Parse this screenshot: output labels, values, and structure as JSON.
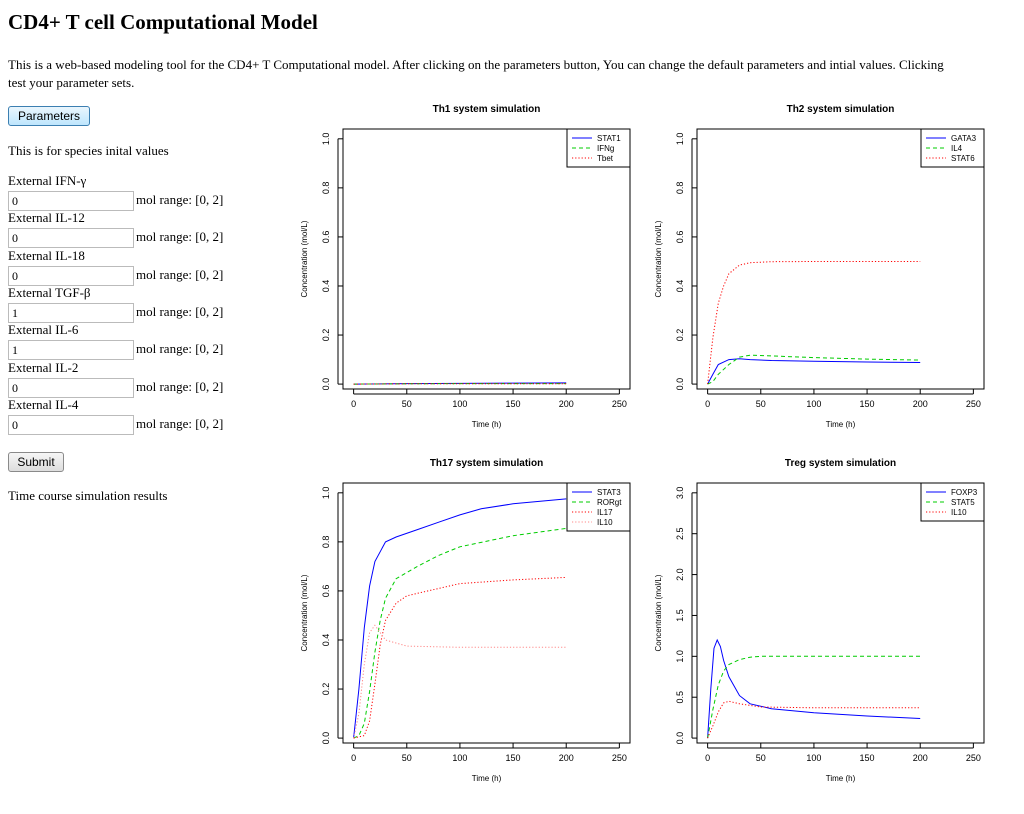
{
  "page": {
    "title": "CD4+ T cell Computational Model",
    "intro_line1": "This is a web-based modeling tool for the CD4+ T Computational model. After clicking on the parameters button, You can change the default parameters and intial values. Clicking",
    "intro_line2": "test your parameter sets.",
    "parameters_button": "Parameters",
    "species_heading": "This is for species inital values",
    "submit_button": "Submit",
    "results_heading": "Time course simulation results"
  },
  "inputs": [
    {
      "label": "External IFN-γ",
      "value": "0",
      "range": "mol range: [0, 2]"
    },
    {
      "label": "External IL-12",
      "value": "0",
      "range": "mol range: [0, 2]"
    },
    {
      "label": "External IL-18",
      "value": "0",
      "range": "mol range: [0, 2]"
    },
    {
      "label": "External TGF-β",
      "value": "1",
      "range": "mol range: [0, 2]"
    },
    {
      "label": "External IL-6",
      "value": "1",
      "range": "mol range: [0, 2]"
    },
    {
      "label": "External IL-2",
      "value": "0",
      "range": "mol range: [0, 2]"
    },
    {
      "label": "External IL-4",
      "value": "0",
      "range": "mol range: [0, 2]"
    }
  ],
  "chart_data": [
    {
      "type": "line",
      "title": "Th1 system simulation",
      "xlabel": "Time (h)",
      "ylabel": "Concentration (mol/L)",
      "xlim": [
        -10,
        260
      ],
      "ylim": [
        -0.02,
        1.04
      ],
      "xticks": [
        0,
        50,
        100,
        150,
        200,
        250
      ],
      "yticks": [
        0.0,
        0.2,
        0.4,
        0.6,
        0.8,
        1.0
      ],
      "legend": "top-right",
      "series": [
        {
          "name": "STAT1",
          "color": "#0000ff",
          "dash": "solid",
          "x": [
            0,
            50,
            100,
            150,
            200
          ],
          "y": [
            0.0,
            0.002,
            0.003,
            0.004,
            0.005
          ]
        },
        {
          "name": "IFNg",
          "color": "#00cc00",
          "dash": "dashed",
          "x": [
            0,
            50,
            100,
            150,
            200
          ],
          "y": [
            0.0,
            0.001,
            0.002,
            0.002,
            0.002
          ]
        },
        {
          "name": "Tbet",
          "color": "#ff0000",
          "dash": "dotted",
          "x": [
            0,
            50,
            100,
            150,
            200
          ],
          "y": [
            0.0,
            0.001,
            0.001,
            0.001,
            0.001
          ]
        }
      ]
    },
    {
      "type": "line",
      "title": "Th2 system simulation",
      "xlabel": "Time (h)",
      "ylabel": "Concentration (mol/L)",
      "xlim": [
        -10,
        260
      ],
      "ylim": [
        -0.02,
        1.04
      ],
      "xticks": [
        0,
        50,
        100,
        150,
        200,
        250
      ],
      "yticks": [
        0.0,
        0.2,
        0.4,
        0.6,
        0.8,
        1.0
      ],
      "legend": "top-right",
      "series": [
        {
          "name": "GATA3",
          "color": "#0000ff",
          "dash": "solid",
          "x": [
            0,
            5,
            10,
            20,
            30,
            40,
            60,
            100,
            150,
            200
          ],
          "y": [
            0.0,
            0.04,
            0.08,
            0.1,
            0.103,
            0.1,
            0.096,
            0.093,
            0.09,
            0.088
          ]
        },
        {
          "name": "IL4",
          "color": "#00cc00",
          "dash": "dashed",
          "x": [
            0,
            5,
            10,
            20,
            30,
            40,
            60,
            100,
            150,
            200
          ],
          "y": [
            0.0,
            0.01,
            0.04,
            0.08,
            0.11,
            0.118,
            0.115,
            0.108,
            0.102,
            0.098
          ]
        },
        {
          "name": "STAT6",
          "color": "#ff0000",
          "dash": "dotted",
          "x": [
            0,
            5,
            10,
            15,
            20,
            30,
            40,
            60,
            100,
            150,
            200
          ],
          "y": [
            0.0,
            0.19,
            0.33,
            0.4,
            0.45,
            0.485,
            0.495,
            0.499,
            0.5,
            0.5,
            0.5
          ]
        }
      ]
    },
    {
      "type": "line",
      "title": "Th17 system simulation",
      "xlabel": "Time (h)",
      "ylabel": "Concentration (mol/L)",
      "xlim": [
        -10,
        260
      ],
      "ylim": [
        -0.02,
        1.04
      ],
      "xticks": [
        0,
        50,
        100,
        150,
        200,
        250
      ],
      "yticks": [
        0.0,
        0.2,
        0.4,
        0.6,
        0.8,
        1.0
      ],
      "legend": "top-right",
      "series": [
        {
          "name": "STAT3",
          "color": "#0000ff",
          "dash": "solid",
          "x": [
            0,
            5,
            10,
            15,
            20,
            30,
            40,
            60,
            80,
            100,
            120,
            150,
            200
          ],
          "y": [
            0.0,
            0.2,
            0.45,
            0.62,
            0.72,
            0.8,
            0.82,
            0.85,
            0.88,
            0.91,
            0.935,
            0.955,
            0.975
          ]
        },
        {
          "name": "RORgt",
          "color": "#00cc00",
          "dash": "dashed",
          "x": [
            0,
            5,
            10,
            15,
            20,
            25,
            30,
            40,
            60,
            80,
            100,
            150,
            200
          ],
          "y": [
            0.0,
            0.01,
            0.06,
            0.19,
            0.35,
            0.48,
            0.57,
            0.65,
            0.7,
            0.745,
            0.78,
            0.825,
            0.855
          ]
        },
        {
          "name": "IL17",
          "color": "#ff0000",
          "dash": "dotted",
          "x": [
            0,
            10,
            15,
            20,
            25,
            30,
            40,
            50,
            70,
            100,
            150,
            200
          ],
          "y": [
            0.0,
            0.01,
            0.07,
            0.22,
            0.38,
            0.48,
            0.55,
            0.58,
            0.6,
            0.63,
            0.645,
            0.655
          ]
        },
        {
          "name": "IL10",
          "color": "#ff8888",
          "dash": "dotted",
          "x": [
            0,
            5,
            10,
            15,
            20,
            30,
            50,
            100,
            150,
            200
          ],
          "y": [
            0.0,
            0.1,
            0.3,
            0.43,
            0.46,
            0.4,
            0.375,
            0.37,
            0.37,
            0.37
          ]
        }
      ]
    },
    {
      "type": "line",
      "title": "Treg system simulation",
      "xlabel": "Time (h)",
      "ylabel": "Concentration (mol/L)",
      "xlim": [
        -10,
        260
      ],
      "ylim": [
        -0.06,
        3.12
      ],
      "xticks": [
        0,
        50,
        100,
        150,
        200,
        250
      ],
      "yticks": [
        0.0,
        0.5,
        1.0,
        1.5,
        2.0,
        2.5,
        3.0
      ],
      "legend": "top-right",
      "series": [
        {
          "name": "FOXP3",
          "color": "#0000ff",
          "dash": "solid",
          "x": [
            0,
            3,
            6,
            9,
            12,
            15,
            20,
            30,
            40,
            60,
            100,
            150,
            200
          ],
          "y": [
            0.0,
            0.6,
            1.1,
            1.2,
            1.12,
            0.95,
            0.75,
            0.52,
            0.42,
            0.36,
            0.31,
            0.27,
            0.24
          ]
        },
        {
          "name": "STAT5",
          "color": "#00cc00",
          "dash": "dashed",
          "x": [
            0,
            5,
            10,
            15,
            20,
            30,
            40,
            50,
            100,
            150,
            200
          ],
          "y": [
            0.0,
            0.35,
            0.65,
            0.82,
            0.9,
            0.96,
            0.99,
            1.0,
            1.0,
            1.0,
            1.0
          ]
        },
        {
          "name": "IL10",
          "color": "#ff0000",
          "dash": "dotted",
          "x": [
            0,
            5,
            10,
            15,
            20,
            30,
            50,
            100,
            150,
            200
          ],
          "y": [
            0.0,
            0.15,
            0.32,
            0.43,
            0.45,
            0.42,
            0.38,
            0.37,
            0.37,
            0.37
          ]
        }
      ]
    }
  ]
}
